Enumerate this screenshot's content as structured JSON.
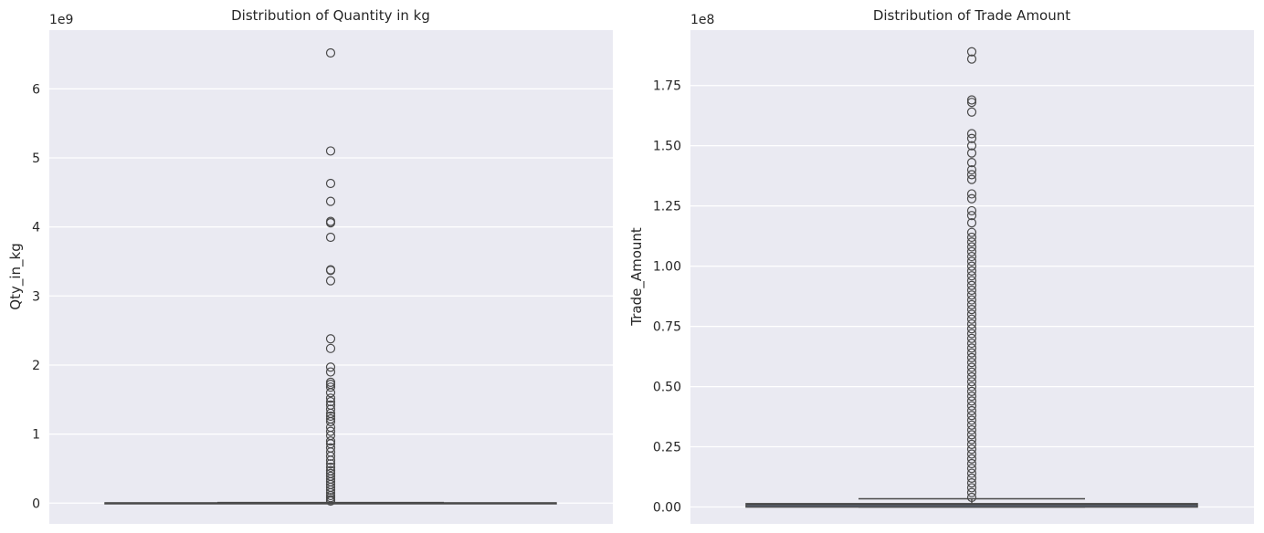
{
  "chart_data": [
    {
      "type": "box",
      "title": "Distribution of Quantity in kg",
      "xlabel": "",
      "ylabel": "Qty_in_kg",
      "offset_label": "1e9",
      "ylim": [
        -0.3,
        6.85
      ],
      "yticks": [
        0,
        1,
        2,
        3,
        4,
        5,
        6
      ],
      "ytick_labels": [
        "0",
        "1",
        "2",
        "3",
        "4",
        "5",
        "6"
      ],
      "box": {
        "q1": 0.0,
        "median": 0.002,
        "q3": 0.004,
        "whisker_low": 0.0,
        "whisker_high": 0.009
      },
      "outliers": [
        6.52,
        5.1,
        4.63,
        4.37,
        4.08,
        4.06,
        3.85,
        3.38,
        3.37,
        3.22,
        2.38,
        2.24,
        1.97,
        1.9,
        1.75,
        1.72,
        1.68,
        1.6,
        1.52,
        1.47,
        1.42,
        1.36,
        1.3,
        1.26,
        1.22,
        1.18,
        1.1,
        1.04,
        0.98,
        0.9,
        0.86,
        0.8,
        0.74,
        0.68,
        0.62,
        0.57,
        0.52,
        0.47,
        0.43,
        0.39,
        0.35,
        0.31,
        0.27,
        0.23,
        0.19,
        0.15,
        0.11,
        0.08,
        0.05,
        0.03
      ]
    },
    {
      "type": "box",
      "title": "Distribution of Trade Amount",
      "xlabel": "",
      "ylabel": "Trade_Amount",
      "offset_label": "1e8",
      "ylim": [
        -0.07,
        1.98
      ],
      "yticks": [
        0,
        0.25,
        0.5,
        0.75,
        1.0,
        1.25,
        1.5,
        1.75
      ],
      "ytick_labels": [
        "0.00",
        "0.25",
        "0.50",
        "0.75",
        "1.00",
        "1.25",
        "1.50",
        "1.75"
      ],
      "box": {
        "q1": 0.0,
        "median": 0.01,
        "q3": 0.014,
        "whisker_low": 0.0,
        "whisker_high": 0.034
      },
      "outliers": [
        1.89,
        1.86,
        1.69,
        1.68,
        1.64,
        1.55,
        1.53,
        1.5,
        1.47,
        1.43,
        1.4,
        1.38,
        1.36,
        1.3,
        1.28,
        1.23,
        1.21,
        1.18,
        1.14,
        1.12,
        1.1,
        1.08,
        1.06,
        1.04,
        1.02,
        1.0,
        0.98,
        0.96,
        0.94,
        0.92,
        0.9,
        0.88,
        0.86,
        0.84,
        0.82,
        0.8,
        0.78,
        0.76,
        0.74,
        0.72,
        0.7,
        0.68,
        0.66,
        0.64,
        0.62,
        0.6,
        0.58,
        0.56,
        0.54,
        0.52,
        0.5,
        0.48,
        0.46,
        0.44,
        0.42,
        0.4,
        0.38,
        0.36,
        0.34,
        0.32,
        0.3,
        0.28,
        0.26,
        0.24,
        0.22,
        0.2,
        0.18,
        0.16,
        0.14,
        0.12,
        0.1,
        0.08,
        0.06,
        0.04
      ]
    }
  ]
}
